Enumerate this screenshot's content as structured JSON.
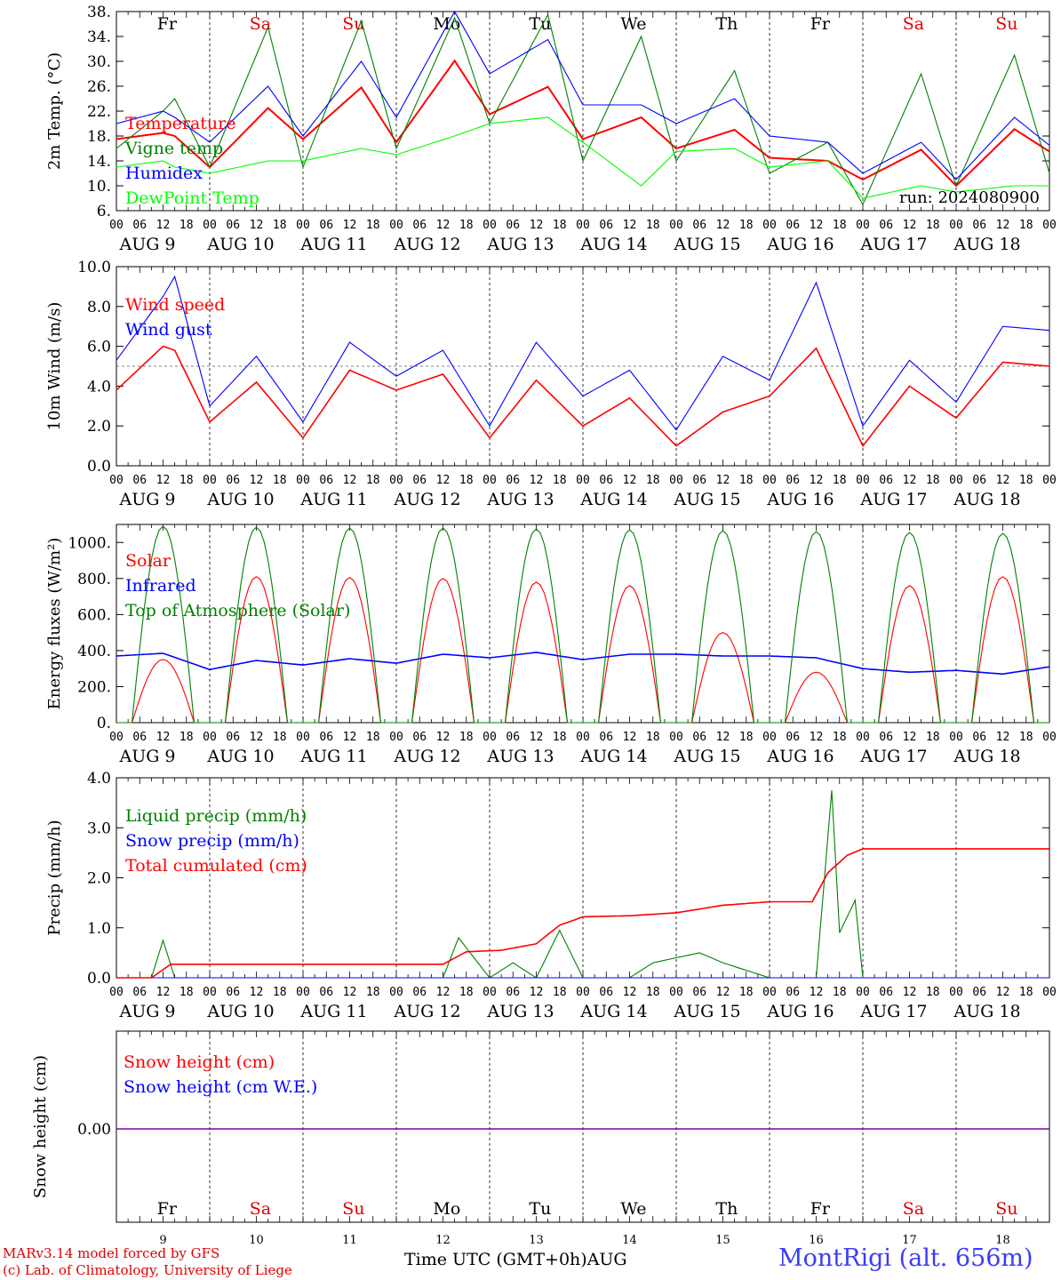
{
  "chart_data": [
    {
      "type": "line",
      "ylabel": "2m Temp. (°C)",
      "ylim": [
        6,
        38
      ],
      "yticks": [
        "6.",
        "10.",
        "14.",
        "18.",
        "22.",
        "26.",
        "30.",
        "34.",
        "38."
      ],
      "day_labels": [
        {
          "text": "Fr",
          "color": "#000000"
        },
        {
          "text": "Sa",
          "color": "#e00000"
        },
        {
          "text": "Su",
          "color": "#e00000"
        },
        {
          "text": "Mo",
          "color": "#000000"
        },
        {
          "text": "Tu",
          "color": "#000000"
        },
        {
          "text": "We",
          "color": "#000000"
        },
        {
          "text": "Th",
          "color": "#000000"
        },
        {
          "text": "Fr",
          "color": "#000000"
        },
        {
          "text": "Sa",
          "color": "#e00000"
        },
        {
          "text": "Su",
          "color": "#e00000"
        }
      ],
      "annotation": "run: 2024080900",
      "hours": [
        0,
        12,
        15,
        24,
        39,
        48,
        63,
        72,
        87,
        96,
        111,
        120,
        135,
        144,
        159,
        168,
        183,
        192,
        207,
        216,
        231,
        240
      ],
      "series": [
        {
          "name": "Temperature",
          "color": "#ff0000",
          "values": [
            17.5,
            18.5,
            18,
            13,
            22.5,
            17.5,
            25.8,
            17,
            30.1,
            21.5,
            25.9,
            17.5,
            21,
            16,
            19,
            14.5,
            14,
            11,
            15.8,
            10,
            19.1,
            15.5
          ]
        },
        {
          "name": "Vigne temp",
          "color": "#008000",
          "values": [
            16,
            22,
            24,
            13,
            35.5,
            13,
            36.5,
            16,
            37,
            20,
            37.5,
            14,
            34,
            14,
            28.5,
            12,
            17,
            7,
            28,
            10,
            31,
            12
          ]
        },
        {
          "name": "Humidex",
          "color": "#0000ff",
          "values": [
            20,
            22,
            21,
            17,
            26,
            18,
            30,
            21,
            38,
            28,
            33.5,
            23,
            23,
            20,
            24,
            18,
            17,
            12,
            17,
            11,
            21,
            16.5
          ]
        },
        {
          "name": "DewPoint Temp",
          "color": "#00ff00",
          "values": [
            13,
            14,
            13,
            12,
            14,
            14,
            16,
            15,
            18,
            20,
            21,
            17,
            10,
            15.5,
            16,
            13,
            14,
            8,
            10,
            9,
            10,
            10
          ]
        }
      ]
    },
    {
      "type": "line",
      "ylabel": "10m Wind (m/s)",
      "ylim": [
        0,
        10
      ],
      "yticks": [
        "0.0",
        "2.0",
        "4.0",
        "6.0",
        "8.0",
        "10.0"
      ],
      "reference_line": 5,
      "hours": [
        0,
        12,
        15,
        24,
        36,
        48,
        60,
        72,
        84,
        96,
        108,
        120,
        132,
        144,
        156,
        168,
        180,
        192,
        204,
        216,
        228,
        240
      ],
      "series": [
        {
          "name": "Wind speed",
          "color": "#ff0000",
          "values": [
            3.8,
            6.0,
            5.8,
            2.2,
            4.2,
            1.4,
            4.8,
            3.8,
            4.6,
            1.4,
            4.3,
            2.0,
            3.4,
            1.0,
            2.7,
            3.5,
            5.9,
            1.0,
            4.0,
            2.4,
            5.2,
            5.0
          ]
        },
        {
          "name": "Wind gust",
          "color": "#0000ff",
          "values": [
            5.3,
            8.5,
            9.5,
            3.0,
            5.5,
            2.2,
            6.2,
            4.5,
            5.8,
            2.0,
            6.2,
            3.5,
            4.8,
            1.8,
            5.5,
            4.3,
            9.2,
            2.0,
            5.3,
            3.2,
            7.0,
            6.8
          ]
        }
      ]
    },
    {
      "type": "line",
      "ylabel": "Energy fluxes (W/m²)",
      "ylim": [
        0,
        1100
      ],
      "yticks": [
        "0.",
        "200.",
        "400.",
        "600.",
        "800.",
        "1000."
      ],
      "hours": [
        0,
        12,
        24,
        36,
        48,
        60,
        72,
        84,
        96,
        108,
        120,
        132,
        144,
        156,
        168,
        180,
        192,
        204,
        216,
        228,
        240
      ],
      "series": [
        {
          "name": "Solar",
          "color": "#ff0000",
          "peaks": [
            350,
            810,
            805,
            800,
            780,
            760,
            500,
            280,
            760,
            810
          ]
        },
        {
          "name": "Infrared",
          "color": "#0000ff",
          "values": [
            370,
            385,
            295,
            345,
            320,
            355,
            330,
            380,
            360,
            390,
            350,
            380,
            380,
            370,
            370,
            360,
            300,
            280,
            290,
            270,
            310
          ]
        },
        {
          "name": "Top of Atmosphere (Solar)",
          "color": "#008000",
          "peaks": [
            1090,
            1085,
            1080,
            1080,
            1075,
            1070,
            1065,
            1060,
            1055,
            1050
          ]
        }
      ]
    },
    {
      "type": "line",
      "ylabel": "Precip (mm/h)",
      "ylim": [
        0,
        4
      ],
      "yticks": [
        "0.0",
        "1.0",
        "2.0",
        "3.0",
        "4.0"
      ],
      "series": [
        {
          "name": "Liquid precip (mm/h)",
          "color": "#008000",
          "hours": [
            0,
            9,
            12,
            15,
            84,
            88,
            96,
            102,
            108,
            114,
            120,
            132,
            138,
            150,
            156,
            168,
            180,
            184,
            186,
            190,
            192,
            240
          ],
          "values": [
            0,
            0,
            0.75,
            0,
            0,
            0.8,
            0,
            0.3,
            0,
            0.95,
            0,
            0,
            0.3,
            0.5,
            0.3,
            0,
            0,
            3.75,
            0.9,
            1.55,
            0,
            0
          ]
        },
        {
          "name": "Snow precip (mm/h)",
          "color": "#0000ff",
          "hours": [
            0,
            240
          ],
          "values": [
            0,
            0
          ]
        },
        {
          "name": "Total cumulated (cm)",
          "color": "#ff0000",
          "hours": [
            0,
            9,
            14,
            84,
            90,
            99,
            108,
            114,
            120,
            132,
            144,
            156,
            168,
            179,
            183,
            188,
            192,
            240
          ],
          "values": [
            0,
            0,
            0.27,
            0.27,
            0.52,
            0.55,
            0.68,
            1.05,
            1.22,
            1.24,
            1.3,
            1.45,
            1.52,
            1.52,
            2.1,
            2.45,
            2.58,
            2.58
          ]
        }
      ]
    },
    {
      "type": "line",
      "ylabel": "Snow height (cm)",
      "yticks": [
        "0.00"
      ],
      "day_labels": [
        {
          "text": "Fr",
          "color": "#000000"
        },
        {
          "text": "Sa",
          "color": "#e00000"
        },
        {
          "text": "Su",
          "color": "#e00000"
        },
        {
          "text": "Mo",
          "color": "#000000"
        },
        {
          "text": "Tu",
          "color": "#000000"
        },
        {
          "text": "We",
          "color": "#000000"
        },
        {
          "text": "Th",
          "color": "#000000"
        },
        {
          "text": "Fr",
          "color": "#000000"
        },
        {
          "text": "Sa",
          "color": "#e00000"
        },
        {
          "text": "Su",
          "color": "#e00000"
        }
      ],
      "day_numbers": [
        "9",
        "10",
        "11",
        "12",
        "13",
        "14",
        "15",
        "16",
        "17",
        "18"
      ],
      "series": [
        {
          "name": "Snow height (cm)",
          "color": "#ff0000",
          "values": [
            0,
            0
          ]
        },
        {
          "name": "Snow height (cm W.E.)",
          "color": "#0000ff",
          "values": [
            0,
            0
          ]
        }
      ]
    }
  ],
  "xaxis": {
    "hour_ticks": [
      "00",
      "06",
      "12",
      "18"
    ],
    "final_hour": "00",
    "date_labels": [
      "AUG  9",
      "AUG 10",
      "AUG 11",
      "AUG 12",
      "AUG 13",
      "AUG 14",
      "AUG 15",
      "AUG 16",
      "AUG 17",
      "AUG 18"
    ]
  },
  "footer": {
    "model_line": "MARv3.14 model forced by GFS",
    "copyright_line": "(c) Lab. of Climatology, University of Liege",
    "time_label": "Time UTC (GMT+0h)",
    "month_label": "AUG",
    "station": "MontRigi (alt. 656m)"
  }
}
